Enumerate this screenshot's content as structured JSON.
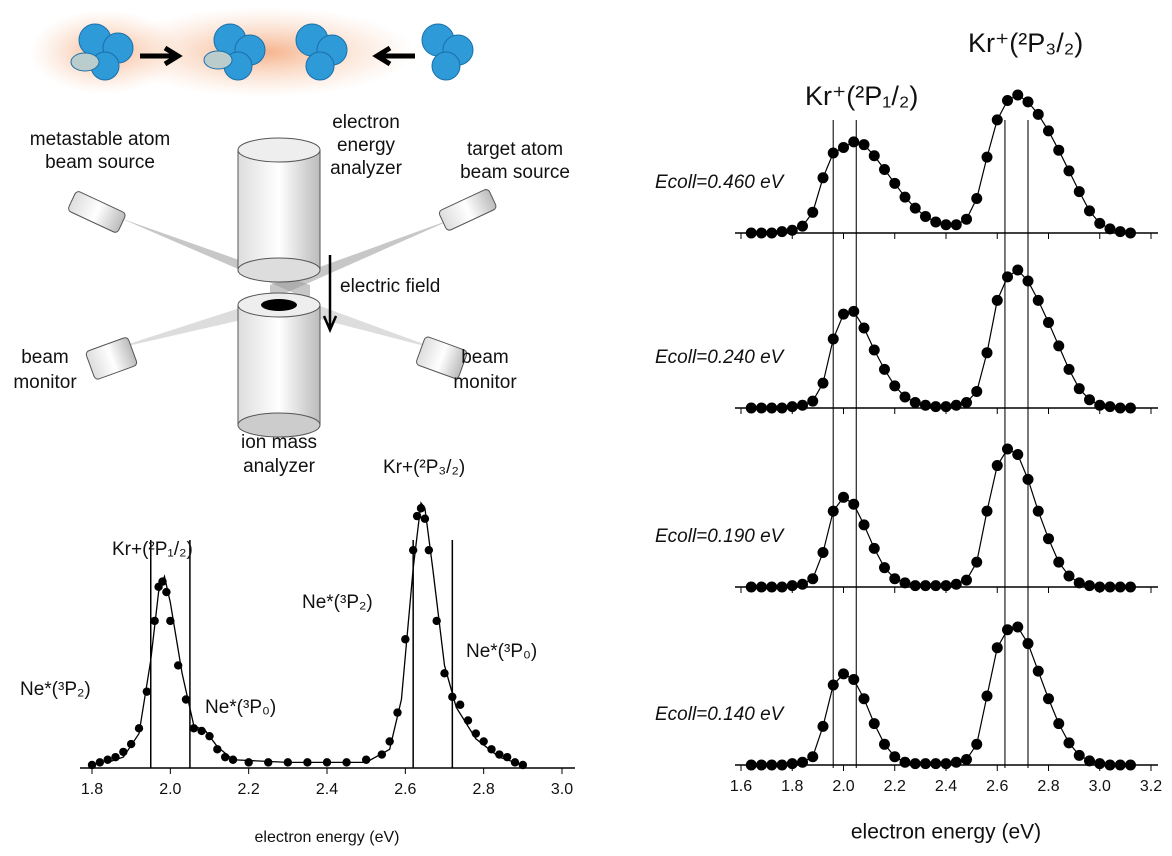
{
  "diagram": {
    "metastable_source": [
      "metastable atom",
      "beam source"
    ],
    "electron_analyzer": [
      "electron",
      "energy",
      "analyzer"
    ],
    "target_source": [
      "target atom",
      "beam source"
    ],
    "electric_field": "electric field",
    "beam_monitor_left": [
      "beam",
      "monitor"
    ],
    "beam_monitor_right": [
      "beam",
      "monitor"
    ],
    "ion_analyzer": [
      "ion mass",
      "analyzer"
    ]
  },
  "chart_data": [
    {
      "type": "scatter",
      "xlabel": "electron energy (eV)",
      "xlim": [
        1.8,
        3.0
      ],
      "ylim": [
        0,
        100
      ],
      "xticks": [
        1.8,
        {
          "value": 2,
          "label": "2.0"
        },
        2.2,
        2.4,
        2.6,
        2.8,
        {
          "value": 3,
          "label": "3.0"
        }
      ],
      "x": [
        1.8,
        1.82,
        1.84,
        1.86,
        1.88,
        1.9,
        1.92,
        1.94,
        1.96,
        1.97,
        1.98,
        1.99,
        2.0,
        2.02,
        2.04,
        2.06,
        2.08,
        2.1,
        2.12,
        2.14,
        2.16,
        2.2,
        2.25,
        2.3,
        2.35,
        2.4,
        2.45,
        2.5,
        2.54,
        2.56,
        2.58,
        2.6,
        2.62,
        2.63,
        2.64,
        2.65,
        2.66,
        2.68,
        2.7,
        2.72,
        2.74,
        2.76,
        2.78,
        2.8,
        2.82,
        2.84,
        2.86,
        2.88,
        2.9
      ],
      "values": [
        0,
        1,
        2,
        3,
        5,
        8,
        14,
        28,
        55,
        68,
        70,
        66,
        55,
        38,
        25,
        14,
        13,
        11,
        6,
        3,
        2,
        1,
        1,
        1,
        1,
        1,
        1,
        2,
        4,
        9,
        20,
        48,
        82,
        95,
        98,
        94,
        82,
        55,
        35,
        26,
        23,
        17,
        12,
        9,
        6,
        4,
        3,
        1,
        0
      ],
      "fit": {
        "x": [
          1.84,
          1.88,
          1.92,
          1.95,
          1.97,
          1.985,
          2.0,
          2.03,
          2.06,
          2.09,
          2.12,
          2.16,
          2.3,
          2.5,
          2.56,
          2.59,
          2.62,
          2.64,
          2.65,
          2.67,
          2.7,
          2.73,
          2.78,
          2.84,
          2.9
        ],
        "values": [
          1,
          3,
          12,
          40,
          66,
          72,
          62,
          35,
          15,
          13,
          7,
          2,
          1,
          1,
          6,
          25,
          75,
          100,
          98,
          75,
          38,
          22,
          10,
          3,
          0
        ]
      },
      "vlines": [
        1.95,
        2.05,
        2.62,
        2.72
      ],
      "annotations": [
        "Kr+(²P₁/₂)",
        "Kr+(²P₃/₂)",
        "Ne*(³P₂)",
        "Ne*(³P₀)",
        "Ne*(³P₂)",
        "Ne*(³P₀)"
      ]
    },
    {
      "type": "stacked-scatter",
      "xlabel": "electron energy (eV)",
      "xlim": [
        1.6,
        3.2
      ],
      "ylim": [
        0,
        100
      ],
      "xticks": [
        1.6,
        1.8,
        {
          "value": 2,
          "label": "2.0"
        },
        2.2,
        2.4,
        2.6,
        2.8,
        {
          "value": 3,
          "label": "3.0"
        },
        3.2
      ],
      "vlines": [
        1.96,
        2.05,
        2.63,
        2.72
      ],
      "headers": [
        "Kr⁺(²P₁/₂)",
        "Kr⁺(²P₃/₂)"
      ],
      "x": [
        1.64,
        1.68,
        1.72,
        1.76,
        1.8,
        1.84,
        1.88,
        1.92,
        1.96,
        2.0,
        2.04,
        2.08,
        2.12,
        2.16,
        2.2,
        2.24,
        2.28,
        2.32,
        2.36,
        2.4,
        2.44,
        2.48,
        2.52,
        2.56,
        2.6,
        2.64,
        2.68,
        2.72,
        2.76,
        2.8,
        2.84,
        2.88,
        2.92,
        2.96,
        3.0,
        3.04,
        3.08,
        3.12
      ],
      "panels": [
        {
          "label": "Ecoll=0.460 eV",
          "values": [
            0,
            0,
            0,
            1,
            2,
            5,
            15,
            40,
            58,
            62,
            66,
            64,
            56,
            46,
            36,
            26,
            18,
            12,
            8,
            6,
            6,
            10,
            25,
            55,
            82,
            96,
            100,
            95,
            86,
            74,
            60,
            45,
            30,
            16,
            7,
            3,
            1,
            0
          ]
        },
        {
          "label": "Ecoll=0.240 eV",
          "values": [
            0,
            0,
            0,
            0,
            1,
            2,
            5,
            18,
            50,
            68,
            70,
            58,
            42,
            28,
            16,
            8,
            4,
            2,
            1,
            1,
            2,
            4,
            12,
            40,
            78,
            95,
            100,
            92,
            78,
            62,
            45,
            28,
            14,
            6,
            2,
            1,
            0,
            0
          ]
        },
        {
          "label": "Ecoll=0.190 eV",
          "values": [
            0,
            0,
            0,
            0,
            1,
            2,
            6,
            25,
            55,
            65,
            60,
            45,
            28,
            14,
            6,
            3,
            1,
            1,
            1,
            1,
            2,
            5,
            18,
            55,
            88,
            100,
            96,
            78,
            55,
            35,
            18,
            8,
            3,
            1,
            0,
            0,
            0,
            0
          ]
        },
        {
          "label": "Ecoll=0.140 eV",
          "values": [
            0,
            0,
            0,
            0,
            1,
            2,
            6,
            28,
            58,
            66,
            62,
            48,
            30,
            15,
            6,
            2,
            1,
            1,
            1,
            1,
            2,
            4,
            15,
            50,
            85,
            98,
            100,
            88,
            68,
            48,
            30,
            16,
            7,
            3,
            1,
            0,
            0,
            0
          ]
        }
      ]
    }
  ]
}
